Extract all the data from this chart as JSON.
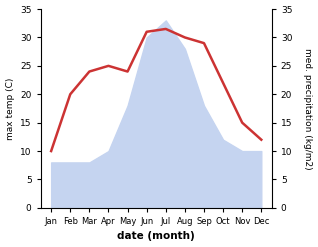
{
  "months": [
    "Jan",
    "Feb",
    "Mar",
    "Apr",
    "May",
    "Jun",
    "Jul",
    "Aug",
    "Sep",
    "Oct",
    "Nov",
    "Dec"
  ],
  "temperature": [
    10,
    20,
    24,
    25,
    24,
    31,
    31.5,
    30,
    29,
    22,
    15,
    12
  ],
  "precipitation": [
    8,
    8,
    8,
    10,
    18,
    30,
    33,
    28,
    18,
    12,
    10,
    10
  ],
  "temp_color": "#cc3333",
  "precip_color_fill": "#c5d4f0",
  "ylabel_left": "max temp (C)",
  "ylabel_right": "med. precipitation (kg/m2)",
  "xlabel": "date (month)",
  "ylim_left": [
    0,
    35
  ],
  "ylim_right": [
    0,
    35
  ],
  "yticks_left": [
    0,
    5,
    10,
    15,
    20,
    25,
    30,
    35
  ],
  "yticks_right": [
    0,
    5,
    10,
    15,
    20,
    25,
    30,
    35
  ],
  "bg_color": "#ffffff",
  "line_width": 1.8
}
